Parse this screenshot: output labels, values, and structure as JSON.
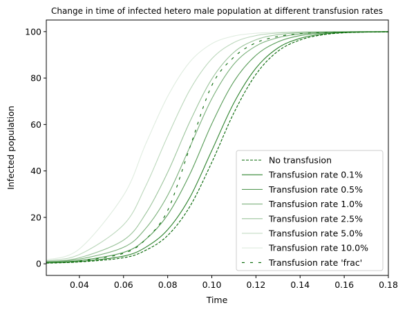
{
  "chart_data": {
    "type": "line",
    "title": "Change in time of infected hetero male population at different transfusion rates",
    "xlabel": "Time",
    "ylabel": "Infected population",
    "xlim": [
      0.025,
      0.18
    ],
    "ylim": [
      -5,
      105
    ],
    "xticks": [
      "0.04",
      "0.06",
      "0.08",
      "0.10",
      "0.12",
      "0.14",
      "0.16",
      "0.18"
    ],
    "yticks": [
      "0",
      "20",
      "40",
      "60",
      "80",
      "100"
    ],
    "grid": false,
    "legend_position": "lower right",
    "series": [
      {
        "name": "No transfusion",
        "color": "#006400",
        "opacity": 1.0,
        "dash": "dashed",
        "x": [
          0.025,
          0.04,
          0.06,
          0.07,
          0.08,
          0.09,
          0.1,
          0.11,
          0.12,
          0.13,
          0.14,
          0.15,
          0.16,
          0.17,
          0.18
        ],
        "y": [
          0.3,
          0.8,
          2.6,
          5.8,
          12.2,
          24.6,
          43.7,
          65.0,
          81.6,
          91.6,
          96.4,
          98.6,
          99.5,
          99.8,
          99.9
        ]
      },
      {
        "name": "Transfusion rate 0.1%",
        "color": "#1f7a1f",
        "opacity": 0.95,
        "dash": "solid",
        "x": [
          0.025,
          0.04,
          0.06,
          0.07,
          0.08,
          0.09,
          0.1,
          0.11,
          0.12,
          0.13,
          0.14,
          0.15,
          0.16,
          0.17,
          0.18
        ],
        "y": [
          0.4,
          1.0,
          3.3,
          7.1,
          14.7,
          28.5,
          48.8,
          69.3,
          84.3,
          93.0,
          97.1,
          98.9,
          99.6,
          99.8,
          99.9
        ]
      },
      {
        "name": "Transfusion rate 0.5%",
        "color": "#1f7a1f",
        "opacity": 0.75,
        "dash": "solid",
        "x": [
          0.025,
          0.04,
          0.06,
          0.07,
          0.08,
          0.09,
          0.1,
          0.11,
          0.12,
          0.13,
          0.14,
          0.15,
          0.16,
          0.17,
          0.18
        ],
        "y": [
          0.6,
          1.4,
          4.9,
          10.5,
          21.1,
          38.5,
          60.3,
          78.5,
          89.8,
          95.6,
          98.3,
          99.3,
          99.7,
          99.9,
          100.0
        ]
      },
      {
        "name": "Transfusion rate 1.0%",
        "color": "#1f7a1f",
        "opacity": 0.6,
        "dash": "solid",
        "x": [
          0.025,
          0.04,
          0.06,
          0.07,
          0.08,
          0.09,
          0.1,
          0.11,
          0.12,
          0.13,
          0.14,
          0.15,
          0.16,
          0.17,
          0.18
        ],
        "y": [
          0.8,
          2.0,
          7.1,
          15.2,
          29.5,
          50.2,
          71.1,
          86.0,
          93.8,
          97.4,
          99.0,
          99.6,
          99.8,
          99.9,
          100.0
        ]
      },
      {
        "name": "Transfusion rate 2.5%",
        "color": "#1f7a1f",
        "opacity": 0.45,
        "dash": "solid",
        "x": [
          0.025,
          0.04,
          0.06,
          0.07,
          0.08,
          0.09,
          0.1,
          0.11,
          0.12,
          0.13,
          0.14,
          0.15,
          0.16,
          0.17,
          0.18
        ],
        "y": [
          1.0,
          2.6,
          10.2,
          21.5,
          39.4,
          61.1,
          79.6,
          91.1,
          96.5,
          98.7,
          99.5,
          99.8,
          99.9,
          100.0,
          100.0
        ]
      },
      {
        "name": "Transfusion rate 5.0%",
        "color": "#1f7a1f",
        "opacity": 0.3,
        "dash": "solid",
        "x": [
          0.025,
          0.04,
          0.06,
          0.07,
          0.08,
          0.09,
          0.1,
          0.11,
          0.12,
          0.13,
          0.14,
          0.15,
          0.16,
          0.17,
          0.18
        ],
        "y": [
          1.3,
          4.0,
          16.8,
          33.4,
          55.0,
          74.8,
          88.3,
          95.3,
          98.3,
          99.4,
          99.8,
          99.9,
          100.0,
          100.0,
          100.0
        ]
      },
      {
        "name": "Transfusion rate 10.0%",
        "color": "#1f7a1f",
        "opacity": 0.14,
        "dash": "solid",
        "x": [
          0.025,
          0.04,
          0.06,
          0.07,
          0.08,
          0.09,
          0.1,
          0.11,
          0.12,
          0.13,
          0.14,
          0.15,
          0.16,
          0.17,
          0.18
        ],
        "y": [
          1.7,
          6.4,
          29.5,
          51.5,
          72.1,
          86.9,
          94.8,
          98.1,
          99.3,
          99.7,
          99.9,
          100.0,
          100.0,
          100.0,
          100.0
        ]
      },
      {
        "name": "Transfusion rate 'frac'",
        "color": "#006400",
        "opacity": 1.0,
        "dash": "sparse",
        "x": [
          0.025,
          0.04,
          0.06,
          0.07,
          0.08,
          0.09,
          0.1,
          0.11,
          0.12,
          0.13,
          0.14,
          0.15,
          0.16,
          0.17,
          0.18
        ],
        "y": [
          0.4,
          1.2,
          4.5,
          10.5,
          23.0,
          50.0,
          76.8,
          89.0,
          95.2,
          97.9,
          99.1,
          99.6,
          99.8,
          99.9,
          100.0
        ]
      }
    ]
  }
}
